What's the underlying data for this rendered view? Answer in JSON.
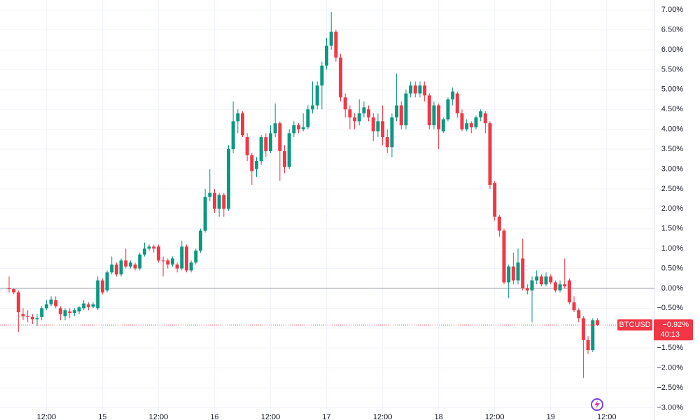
{
  "chart_data": {
    "type": "candlestick",
    "symbol": "BTCUSD",
    "last_value": -0.92,
    "last_value_label": "−0.92%",
    "countdown": "40:13",
    "up_color": "#089981",
    "down_color": "#f23645",
    "baseline": 0,
    "grid": true,
    "ylim": [
      -3.31,
      7.25
    ],
    "yticks": [
      {
        "value": -3,
        "label": "−3.00%"
      },
      {
        "value": -2.5,
        "label": "−2.50%"
      },
      {
        "value": -2,
        "label": "−2.00%"
      },
      {
        "value": -1.5,
        "label": "−1.50%"
      },
      {
        "value": -1,
        "label": "−1.00%"
      },
      {
        "value": -0.5,
        "label": "−0.50%"
      },
      {
        "value": 0,
        "label": "0.00%"
      },
      {
        "value": 0.5,
        "label": "0.50%"
      },
      {
        "value": 1,
        "label": "1.00%"
      },
      {
        "value": 1.5,
        "label": "1.50%"
      },
      {
        "value": 2,
        "label": "2.00%"
      },
      {
        "value": 2.5,
        "label": "2.50%"
      },
      {
        "value": 3,
        "label": "3.00%"
      },
      {
        "value": 3.5,
        "label": "3.50%"
      },
      {
        "value": 4,
        "label": "4.00%"
      },
      {
        "value": 4.5,
        "label": "4.50%"
      },
      {
        "value": 5,
        "label": "5.00%"
      },
      {
        "value": 5.5,
        "label": "5.50%"
      },
      {
        "value": 6,
        "label": "6.00%"
      },
      {
        "value": 6.5,
        "label": "6.50%"
      },
      {
        "value": 7,
        "label": "7.00%"
      }
    ],
    "categories": [
      null,
      null,
      null,
      null,
      null,
      null,
      null,
      null,
      "12:00",
      null,
      null,
      null,
      null,
      null,
      null,
      null,
      null,
      null,
      null,
      null,
      "15",
      null,
      null,
      null,
      null,
      null,
      null,
      null,
      null,
      null,
      null,
      null,
      "12:00",
      null,
      null,
      null,
      null,
      null,
      null,
      null,
      null,
      null,
      null,
      null,
      "16",
      null,
      null,
      null,
      null,
      null,
      null,
      null,
      null,
      null,
      null,
      null,
      "12:00",
      null,
      null,
      null,
      null,
      null,
      null,
      null,
      null,
      null,
      null,
      null,
      "17",
      null,
      null,
      null,
      null,
      null,
      null,
      null,
      null,
      null,
      null,
      null,
      "12:00",
      null,
      null,
      null,
      null,
      null,
      null,
      null,
      null,
      null,
      null,
      null,
      "18",
      null,
      null,
      null,
      null,
      null,
      null,
      null,
      null,
      null,
      null,
      null,
      "12:00",
      null,
      null,
      null,
      null,
      null,
      null,
      null,
      null,
      null,
      null,
      null,
      "19",
      null,
      null,
      null,
      null,
      null,
      null,
      null,
      null,
      null,
      null,
      null,
      "12:00"
    ],
    "open": [
      0,
      -0.02,
      -0.1,
      -0.65,
      -0.7,
      -0.72,
      -0.78,
      -0.72,
      -0.5,
      -0.4,
      -0.3,
      -0.5,
      -0.7,
      -0.58,
      -0.62,
      -0.58,
      -0.5,
      -0.4,
      -0.46,
      -0.5,
      0.2,
      -0.05,
      0.4,
      0.6,
      0.35,
      0.7,
      0.55,
      0.6,
      0.5,
      0.85,
      1.0,
      1.05,
      1.05,
      0.7,
      0.7,
      0.6,
      0.6,
      0.5,
      1.05,
      0.45,
      0.65,
      0.95,
      1.45,
      2.3,
      2.4,
      2.0,
      2.35,
      2.0,
      3.5,
      4.2,
      4.4,
      3.8,
      3.35,
      3.0,
      3.2,
      3.8,
      3.45,
      3.9,
      4.15,
      3.45,
      3.05,
      3.9,
      4.1,
      4.0,
      4.05,
      4.5,
      4.6,
      5.1,
      5.6,
      6.1,
      6.45,
      5.8,
      4.8,
      4.5,
      4.3,
      4.2,
      4.4,
      4.5,
      4.3,
      3.95,
      4.2,
      3.8,
      3.55,
      4.3,
      4.6,
      4.1,
      4.9,
      5.1,
      4.9,
      5.1,
      4.85,
      4.1,
      4.6,
      3.95,
      4.25,
      4.75,
      4.9,
      4.4,
      4.0,
      4.15,
      4.05,
      4.3,
      4.4,
      4.15,
      2.65,
      1.8,
      1.45,
      0.15,
      0.55,
      0.2,
      0.75,
      0.0,
      -0.05,
      0.2,
      0.3,
      0.1,
      0.3,
      0.15,
      -0.05,
      0.1,
      0.2,
      -0.35,
      -0.55,
      -0.75,
      -1.3,
      -1.55,
      -0.8,
      null,
      null
    ],
    "high": [
      0.3,
      0,
      -0.05,
      -0.5,
      -0.55,
      -0.65,
      -0.65,
      -0.45,
      -0.3,
      -0.2,
      -0.2,
      -0.45,
      -0.5,
      -0.5,
      -0.5,
      -0.45,
      -0.3,
      -0.35,
      -0.35,
      0.3,
      0.25,
      0.45,
      0.8,
      0.65,
      0.75,
      1.0,
      0.7,
      0.65,
      0.9,
      1.15,
      1.1,
      1.1,
      1.1,
      0.8,
      0.75,
      0.8,
      0.65,
      1.2,
      1.1,
      0.7,
      1.0,
      1.5,
      2.5,
      3.0,
      2.5,
      2.4,
      2.4,
      3.6,
      4.7,
      4.5,
      4.45,
      3.9,
      3.4,
      3.3,
      3.85,
      3.9,
      4.1,
      4.65,
      4.2,
      3.6,
      4.0,
      4.2,
      4.15,
      4.4,
      4.6,
      5.2,
      5.2,
      5.7,
      6.3,
      6.95,
      6.5,
      5.9,
      4.9,
      4.6,
      4.4,
      4.75,
      4.7,
      4.6,
      4.4,
      4.4,
      4.6,
      4.0,
      4.4,
      5.4,
      4.7,
      5.0,
      5.2,
      5.2,
      5.2,
      5.2,
      4.9,
      4.7,
      4.65,
      4.3,
      4.8,
      5.05,
      4.95,
      4.5,
      4.25,
      4.2,
      4.35,
      4.5,
      4.45,
      4.2,
      2.7,
      1.85,
      1.5,
      0.6,
      0.9,
      1.0,
      1.25,
      0.1,
      0.3,
      0.45,
      0.35,
      0.4,
      0.35,
      0.2,
      0.2,
      0.75,
      0.25,
      -0.2,
      -0.5,
      -0.7,
      -1.2,
      -0.75,
      -0.75,
      null,
      null
    ],
    "low": [
      -0.1,
      -0.15,
      -1.1,
      -0.8,
      -0.85,
      -0.9,
      -0.95,
      -0.8,
      -0.55,
      -0.45,
      -0.5,
      -0.8,
      -0.8,
      -0.75,
      -0.7,
      -0.65,
      -0.55,
      -0.55,
      -0.5,
      -0.55,
      -0.15,
      -0.1,
      0.35,
      0.3,
      0.3,
      0.5,
      0.5,
      0.45,
      0.45,
      0.8,
      0.95,
      0.9,
      0.65,
      0.3,
      0.5,
      0.55,
      0.4,
      0.45,
      0.4,
      0.4,
      0.6,
      0.9,
      1.4,
      2.2,
      1.9,
      1.8,
      1.8,
      1.95,
      3.4,
      3.9,
      3.8,
      3.2,
      2.6,
      2.8,
      3.1,
      3.3,
      3.4,
      3.8,
      2.7,
      2.9,
      3.0,
      3.8,
      3.9,
      3.95,
      4.0,
      4.4,
      4.5,
      4.5,
      5.5,
      6.0,
      5.7,
      4.7,
      4.3,
      4.0,
      4.0,
      4.1,
      4.3,
      4.2,
      3.7,
      3.8,
      3.6,
      3.4,
      3.3,
      4.2,
      4.0,
      4.0,
      4.8,
      4.8,
      4.8,
      4.7,
      4.0,
      4.0,
      3.5,
      3.9,
      4.2,
      4.6,
      4.3,
      3.95,
      3.95,
      3.9,
      4.0,
      4.2,
      3.9,
      2.5,
      1.7,
      1.3,
      0.1,
      -0.25,
      0.1,
      0.1,
      -0.05,
      -0.15,
      -0.85,
      0.1,
      0.05,
      0.05,
      0.1,
      -0.1,
      -0.1,
      0.0,
      -0.4,
      -0.6,
      -0.85,
      -2.25,
      -1.65,
      -1.6,
      -0.95,
      null,
      null
    ],
    "close": [
      -0.02,
      -0.1,
      -0.6,
      -0.7,
      -0.72,
      -0.78,
      -0.75,
      -0.5,
      -0.4,
      -0.28,
      -0.45,
      -0.65,
      -0.55,
      -0.62,
      -0.55,
      -0.48,
      -0.38,
      -0.47,
      -0.4,
      0.2,
      -0.1,
      0.4,
      0.6,
      0.35,
      0.7,
      0.55,
      0.65,
      0.5,
      0.85,
      1.0,
      1.05,
      1.0,
      0.7,
      0.68,
      0.6,
      0.75,
      0.5,
      1.05,
      0.45,
      0.65,
      0.95,
      1.45,
      2.3,
      2.4,
      2.0,
      2.35,
      2.0,
      3.5,
      4.2,
      4.4,
      3.85,
      3.35,
      2.95,
      3.2,
      3.8,
      3.45,
      3.9,
      4.15,
      3.45,
      3.05,
      3.9,
      4.1,
      4.0,
      4.05,
      4.5,
      4.6,
      5.1,
      5.6,
      6.1,
      6.45,
      5.8,
      4.8,
      4.5,
      4.3,
      4.2,
      4.4,
      4.55,
      4.3,
      3.95,
      4.2,
      3.8,
      3.55,
      4.3,
      4.6,
      4.1,
      4.9,
      5.1,
      4.9,
      5.1,
      4.85,
      4.1,
      4.6,
      4.0,
      4.25,
      4.75,
      4.95,
      4.4,
      4.0,
      4.15,
      4.05,
      4.3,
      4.45,
      4.15,
      2.6,
      1.8,
      1.45,
      0.15,
      0.55,
      0.2,
      0.65,
      0.0,
      -0.05,
      0.2,
      0.3,
      0.1,
      0.3,
      0.15,
      -0.05,
      0.1,
      0.05,
      -0.35,
      -0.55,
      -0.75,
      -1.3,
      -1.55,
      -0.8,
      -0.92,
      null,
      null
    ]
  }
}
